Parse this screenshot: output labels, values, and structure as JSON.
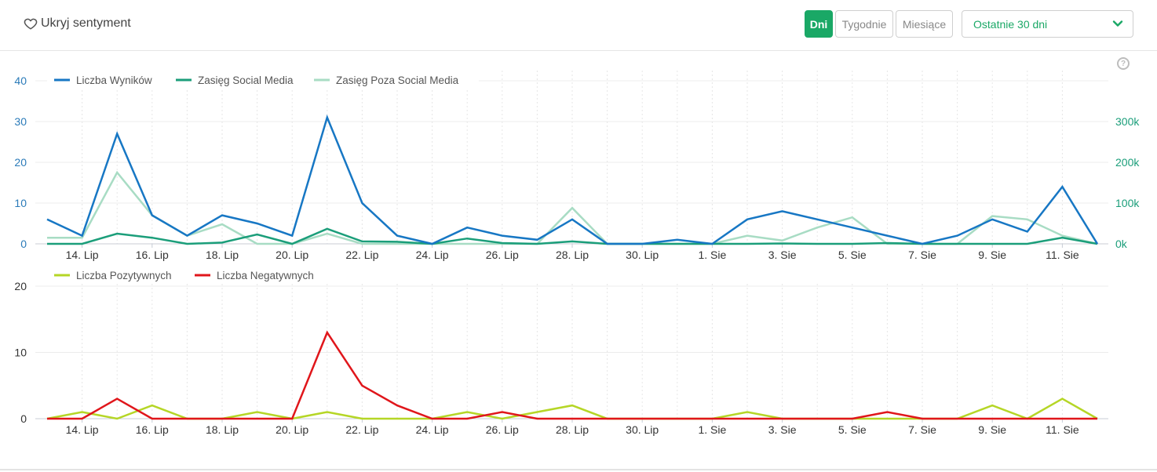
{
  "toolbar": {
    "sentiment_toggle": "Ukryj sentyment",
    "periods": [
      "Dni",
      "Tygodnie",
      "Miesiące"
    ],
    "active_period": "Dni",
    "range": "Ostatnie 30 dni"
  },
  "help_symbol": "?",
  "colors": {
    "accent": "#1aa866",
    "wyniki": "#1777c4",
    "social": "#1b9e7a",
    "poza_social": "#a8dcc4",
    "pozytywne": "#b5d626",
    "negatywne": "#e0161b",
    "axis_left": "#2b7bb9",
    "axis_right": "#1b9e7a"
  },
  "chart_data": [
    {
      "type": "line",
      "x": [
        "13. Lip",
        "14. Lip",
        "15. Lip",
        "16. Lip",
        "17. Lip",
        "18. Lip",
        "19. Lip",
        "20. Lip",
        "21. Lip",
        "22. Lip",
        "23. Lip",
        "24. Lip",
        "25. Lip",
        "26. Lip",
        "27. Lip",
        "28. Lip",
        "29. Lip",
        "30. Lip",
        "31. Lip",
        "1. Sie",
        "2. Sie",
        "3. Sie",
        "4. Sie",
        "5. Sie",
        "6. Sie",
        "7. Sie",
        "8. Sie",
        "9. Sie",
        "10. Sie",
        "11. Sie",
        "12. Sie"
      ],
      "xtick_labels": [
        "14. Lip",
        "16. Lip",
        "18. Lip",
        "20. Lip",
        "22. Lip",
        "24. Lip",
        "26. Lip",
        "28. Lip",
        "30. Lip",
        "1. Sie",
        "3. Sie",
        "5. Sie",
        "7. Sie",
        "9. Sie",
        "11. Sie"
      ],
      "ylim_left": [
        0,
        40
      ],
      "yticks_left": [
        "0",
        "10",
        "20",
        "30",
        "40"
      ],
      "ylim_right": [
        0,
        400000
      ],
      "yticks_right": [
        "0k",
        "100k",
        "200k",
        "300k"
      ],
      "legend_position": "top-left",
      "grid": true,
      "series": [
        {
          "name": "Liczba Wyników",
          "axis": "left",
          "values": [
            6,
            2,
            27,
            7,
            2,
            7,
            5,
            2,
            31,
            10,
            2,
            0,
            4,
            2,
            1,
            6,
            0,
            0,
            1,
            0,
            6,
            8,
            6,
            4,
            2,
            0,
            2,
            6,
            3,
            14,
            0
          ]
        },
        {
          "name": "Zasięg Social Media",
          "axis": "right",
          "values": [
            0,
            0,
            25000,
            15000,
            0,
            3000,
            23000,
            0,
            37000,
            6000,
            5000,
            0,
            13000,
            2000,
            0,
            6000,
            0,
            0,
            0,
            0,
            0,
            1000,
            0,
            0,
            2000,
            0,
            0,
            0,
            0,
            15000,
            0
          ]
        },
        {
          "name": "Zasięg Poza Social Media",
          "axis": "right",
          "values": [
            15000,
            15000,
            175000,
            70000,
            20000,
            48000,
            0,
            0,
            25000,
            0,
            0,
            0,
            0,
            0,
            0,
            88000,
            0,
            0,
            0,
            0,
            20000,
            8000,
            40000,
            65000,
            0,
            0,
            0,
            68000,
            60000,
            20000,
            0
          ]
        }
      ]
    },
    {
      "type": "line",
      "x": [
        "13. Lip",
        "14. Lip",
        "15. Lip",
        "16. Lip",
        "17. Lip",
        "18. Lip",
        "19. Lip",
        "20. Lip",
        "21. Lip",
        "22. Lip",
        "23. Lip",
        "24. Lip",
        "25. Lip",
        "26. Lip",
        "27. Lip",
        "28. Lip",
        "29. Lip",
        "30. Lip",
        "31. Lip",
        "1. Sie",
        "2. Sie",
        "3. Sie",
        "4. Sie",
        "5. Sie",
        "6. Sie",
        "7. Sie",
        "8. Sie",
        "9. Sie",
        "10. Sie",
        "11. Sie",
        "12. Sie"
      ],
      "xtick_labels": [
        "14. Lip",
        "16. Lip",
        "18. Lip",
        "20. Lip",
        "22. Lip",
        "24. Lip",
        "26. Lip",
        "28. Lip",
        "30. Lip",
        "1. Sie",
        "3. Sie",
        "5. Sie",
        "7. Sie",
        "9. Sie",
        "11. Sie"
      ],
      "ylim": [
        0,
        20
      ],
      "yticks": [
        "0",
        "10",
        "20"
      ],
      "legend_position": "top-left",
      "grid": true,
      "series": [
        {
          "name": "Liczba Pozytywnych",
          "values": [
            0,
            1,
            0,
            2,
            0,
            0,
            1,
            0,
            1,
            0,
            0,
            0,
            1,
            0,
            1,
            2,
            0,
            0,
            0,
            0,
            1,
            0,
            0,
            0,
            0,
            0,
            0,
            2,
            0,
            3,
            0
          ]
        },
        {
          "name": "Liczba Negatywnych",
          "values": [
            0,
            0,
            3,
            0,
            0,
            0,
            0,
            0,
            13,
            5,
            2,
            0,
            0,
            1,
            0,
            0,
            0,
            0,
            0,
            0,
            0,
            0,
            0,
            0,
            1,
            0,
            0,
            0,
            0,
            0,
            0
          ]
        }
      ]
    }
  ]
}
